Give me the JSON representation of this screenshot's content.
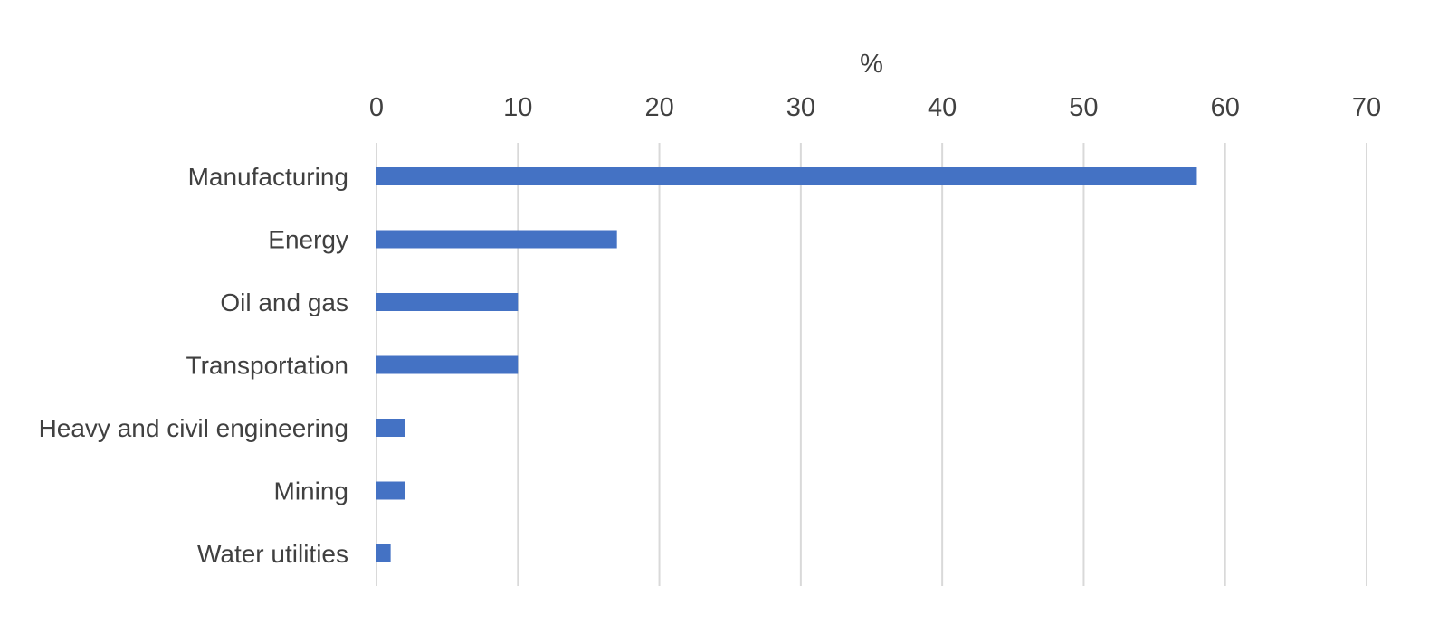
{
  "chart_data": {
    "type": "bar",
    "orientation": "horizontal",
    "xlabel": "%",
    "xlim": [
      0,
      70
    ],
    "xticks": [
      0,
      10,
      20,
      30,
      40,
      50,
      60,
      70
    ],
    "x_axis_position": "top",
    "grid": true,
    "categories": [
      "Manufacturing",
      "Energy",
      "Oil and gas",
      "Transportation",
      "Heavy and civil engineering",
      "Mining",
      "Water utilities"
    ],
    "values": [
      58,
      17,
      10,
      10,
      2,
      2,
      1
    ],
    "bar_color": "#4472C4",
    "grid_color": "#D9D9D9",
    "text_color": "#404040"
  }
}
